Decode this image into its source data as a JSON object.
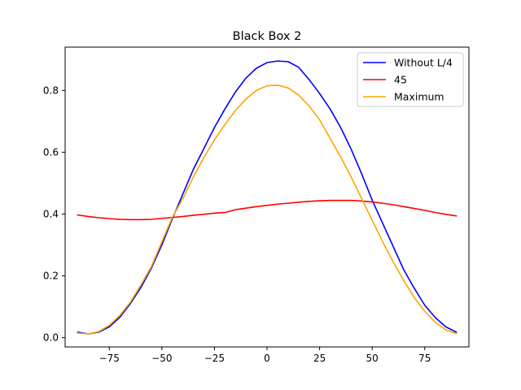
{
  "chart_data": {
    "type": "line",
    "title": "Black Box 2",
    "xlabel": "",
    "ylabel": "",
    "xlim": [
      -96,
      96
    ],
    "ylim": [
      -0.03,
      0.94
    ],
    "xticks": [
      -75,
      -50,
      -25,
      0,
      25,
      50,
      75
    ],
    "xtick_labels": [
      "−75",
      "−50",
      "−25",
      "0",
      "25",
      "50",
      "75"
    ],
    "yticks": [
      0.0,
      0.2,
      0.4,
      0.6,
      0.8
    ],
    "ytick_labels": [
      "0.0",
      "0.2",
      "0.4",
      "0.6",
      "0.8"
    ],
    "grid": false,
    "legend_position": "top-right",
    "series": [
      {
        "name": "Without L/4",
        "color": "#0000ff",
        "x": [
          -90,
          -85,
          -80,
          -75,
          -70,
          -65,
          -60,
          -55,
          -50,
          -45,
          -40,
          -35,
          -30,
          -25,
          -20,
          -15,
          -10,
          -5,
          0,
          5,
          10,
          15,
          20,
          25,
          30,
          35,
          40,
          45,
          50,
          55,
          60,
          65,
          70,
          75,
          80,
          85,
          90
        ],
        "y": [
          0.018,
          0.012,
          0.018,
          0.035,
          0.066,
          0.11,
          0.162,
          0.225,
          0.3,
          0.385,
          0.465,
          0.545,
          0.612,
          0.68,
          0.74,
          0.795,
          0.84,
          0.872,
          0.89,
          0.895,
          0.893,
          0.875,
          0.835,
          0.79,
          0.74,
          0.68,
          0.61,
          0.53,
          0.445,
          0.37,
          0.295,
          0.22,
          0.16,
          0.105,
          0.065,
          0.035,
          0.018
        ]
      },
      {
        "name": "45",
        "color": "#ff0000",
        "x": [
          -90,
          -85,
          -80,
          -75,
          -70,
          -65,
          -60,
          -55,
          -50,
          -45,
          -40,
          -35,
          -30,
          -25,
          -20,
          -15,
          -10,
          -5,
          0,
          5,
          10,
          15,
          20,
          25,
          30,
          35,
          40,
          45,
          50,
          55,
          60,
          65,
          70,
          75,
          80,
          85,
          90
        ],
        "y": [
          0.397,
          0.392,
          0.388,
          0.385,
          0.383,
          0.382,
          0.382,
          0.383,
          0.386,
          0.389,
          0.392,
          0.396,
          0.399,
          0.403,
          0.405,
          0.414,
          0.419,
          0.424,
          0.428,
          0.432,
          0.435,
          0.438,
          0.441,
          0.443,
          0.444,
          0.444,
          0.444,
          0.442,
          0.439,
          0.435,
          0.43,
          0.424,
          0.418,
          0.412,
          0.405,
          0.399,
          0.394
        ]
      },
      {
        "name": "Maximum",
        "color": "#ffa500",
        "x": [
          -90,
          -85,
          -80,
          -75,
          -70,
          -65,
          -60,
          -55,
          -50,
          -45,
          -40,
          -35,
          -30,
          -25,
          -20,
          -15,
          -10,
          -5,
          0,
          5,
          10,
          15,
          20,
          25,
          30,
          35,
          40,
          45,
          50,
          55,
          60,
          65,
          70,
          75,
          80,
          85,
          90
        ],
        "y": [
          0.015,
          0.012,
          0.02,
          0.04,
          0.072,
          0.115,
          0.17,
          0.23,
          0.31,
          0.39,
          0.45,
          0.52,
          0.583,
          0.64,
          0.69,
          0.735,
          0.772,
          0.8,
          0.815,
          0.817,
          0.808,
          0.785,
          0.75,
          0.705,
          0.645,
          0.585,
          0.52,
          0.45,
          0.38,
          0.31,
          0.245,
          0.185,
          0.13,
          0.085,
          0.05,
          0.025,
          0.013
        ]
      }
    ]
  }
}
